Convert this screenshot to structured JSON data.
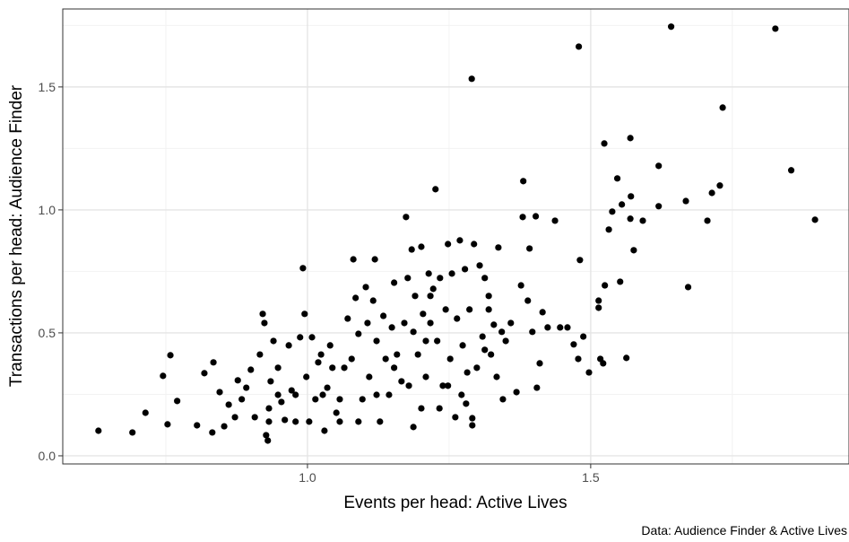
{
  "chart_data": {
    "type": "scatter",
    "x_label": "Events per head: Active Lives",
    "y_label": "Transactions per head: Audience Finder",
    "caption": "Data: Audience Finder & Active Lives",
    "xlim": [
      0.568,
      1.956
    ],
    "ylim": [
      -0.033,
      1.817
    ],
    "xticks": [
      {
        "value": 1.0,
        "label": "1.0"
      },
      {
        "value": 1.5,
        "label": "1.5"
      }
    ],
    "yticks": [
      {
        "value": 0.0,
        "label": "0.0"
      },
      {
        "value": 0.5,
        "label": "0.5"
      },
      {
        "value": 1.0,
        "label": "1.0"
      },
      {
        "value": 1.5,
        "label": "1.5"
      }
    ],
    "x_minor_breaks": [
      0.75,
      1.25,
      1.75
    ],
    "y_minor_breaks": [
      0.25,
      0.75,
      1.25,
      1.75
    ],
    "grid": true,
    "color": "#000000",
    "x": [
      0.631,
      0.691,
      0.714,
      0.745,
      0.758,
      0.753,
      0.77,
      0.805,
      0.818,
      0.834,
      0.832,
      0.845,
      0.853,
      0.861,
      0.872,
      0.877,
      0.884,
      0.892,
      0.9,
      0.907,
      0.916,
      0.921,
      0.924,
      0.927,
      0.93,
      0.932,
      0.935,
      0.94,
      0.948,
      0.954,
      0.96,
      0.967,
      0.972,
      0.979,
      0.987,
      0.992,
      0.995,
      0.998,
      1.003,
      1.008,
      1.014,
      1.019,
      1.024,
      1.03,
      1.035,
      1.04,
      1.044,
      1.051,
      1.057,
      1.065,
      1.071,
      1.078,
      1.081,
      1.085,
      1.09,
      1.097,
      1.103,
      1.106,
      1.109,
      1.116,
      1.119,
      1.122,
      1.128,
      1.134,
      1.138,
      1.144,
      1.149,
      1.153,
      1.158,
      1.166,
      1.171,
      1.174,
      1.179,
      1.184,
      1.187,
      1.19,
      1.195,
      1.201,
      1.204,
      1.209,
      1.214,
      1.217,
      1.222,
      1.226,
      1.229,
      1.234,
      1.239,
      1.244,
      1.248,
      1.252,
      1.255,
      1.261,
      1.264,
      1.269,
      1.274,
      1.278,
      1.282,
      1.286,
      1.29,
      1.291,
      1.291,
      1.294,
      1.299,
      1.304,
      1.309,
      1.313,
      1.32,
      1.324,
      1.329,
      1.334,
      1.337,
      1.345,
      1.35,
      1.359,
      1.369,
      1.377,
      1.38,
      1.381,
      1.389,
      1.392,
      1.397,
      1.403,
      1.405,
      1.41,
      1.415,
      1.424,
      1.437,
      1.446,
      1.459,
      1.47,
      1.478,
      1.479,
      1.481,
      1.487,
      1.497,
      1.514,
      1.514,
      1.517,
      1.522,
      1.524,
      1.525,
      1.532,
      1.538,
      1.547,
      1.552,
      1.555,
      1.563,
      1.57,
      1.571,
      1.57,
      1.576,
      1.592,
      1.62,
      1.62,
      1.642,
      1.668,
      1.672,
      1.706,
      1.714,
      1.728,
      1.733,
      1.826,
      1.854,
      1.896,
      1.201,
      1.209,
      1.233,
      1.28,
      1.313,
      1.343,
      1.153,
      1.122,
      1.09,
      1.057,
      1.027,
      0.979,
      0.948,
      0.932,
      1.187,
      1.248,
      1.272,
      1.32,
      1.217,
      1.177
    ],
    "y": [
      0.102,
      0.095,
      0.175,
      0.325,
      0.409,
      0.128,
      0.223,
      0.124,
      0.336,
      0.38,
      0.095,
      0.259,
      0.12,
      0.208,
      0.157,
      0.307,
      0.23,
      0.277,
      0.35,
      0.157,
      0.412,
      0.577,
      0.54,
      0.084,
      0.062,
      0.193,
      0.303,
      0.467,
      0.358,
      0.219,
      0.146,
      0.449,
      0.266,
      0.139,
      0.482,
      0.763,
      0.577,
      0.321,
      0.139,
      0.482,
      0.23,
      0.38,
      0.412,
      0.102,
      0.277,
      0.449,
      0.358,
      0.175,
      0.23,
      0.358,
      0.558,
      0.394,
      0.799,
      0.642,
      0.496,
      0.23,
      0.686,
      0.54,
      0.321,
      0.631,
      0.799,
      0.467,
      0.139,
      0.569,
      0.394,
      0.248,
      0.522,
      0.704,
      0.412,
      0.303,
      0.54,
      0.971,
      0.285,
      0.839,
      0.117,
      0.65,
      0.412,
      0.85,
      0.577,
      0.321,
      0.741,
      0.54,
      0.679,
      1.084,
      0.467,
      0.723,
      0.285,
      0.595,
      0.861,
      0.394,
      0.741,
      0.157,
      0.558,
      0.876,
      0.449,
      0.759,
      0.339,
      0.595,
      1.533,
      0.124,
      0.153,
      0.861,
      0.358,
      0.774,
      0.485,
      0.723,
      0.65,
      0.412,
      0.533,
      0.321,
      0.847,
      0.23,
      0.467,
      0.54,
      0.259,
      0.693,
      0.971,
      1.117,
      0.631,
      0.843,
      0.504,
      0.974,
      0.277,
      0.376,
      0.584,
      0.522,
      0.956,
      0.522,
      0.522,
      0.453,
      0.394,
      1.664,
      0.796,
      0.485,
      0.339,
      0.631,
      0.602,
      0.394,
      0.376,
      1.27,
      0.693,
      0.92,
      0.993,
      1.128,
      0.708,
      1.022,
      0.398,
      1.292,
      1.055,
      0.964,
      0.836,
      0.956,
      1.179,
      1.015,
      1.745,
      1.036,
      0.686,
      0.956,
      1.069,
      1.099,
      1.416,
      1.737,
      1.161,
      0.96,
      0.193,
      0.467,
      0.193,
      0.212,
      0.431,
      0.504,
      0.358,
      0.248,
      0.139,
      0.139,
      0.248,
      0.248,
      0.248,
      0.139,
      0.504,
      0.285,
      0.248,
      0.595,
      0.65,
      0.723
    ]
  }
}
